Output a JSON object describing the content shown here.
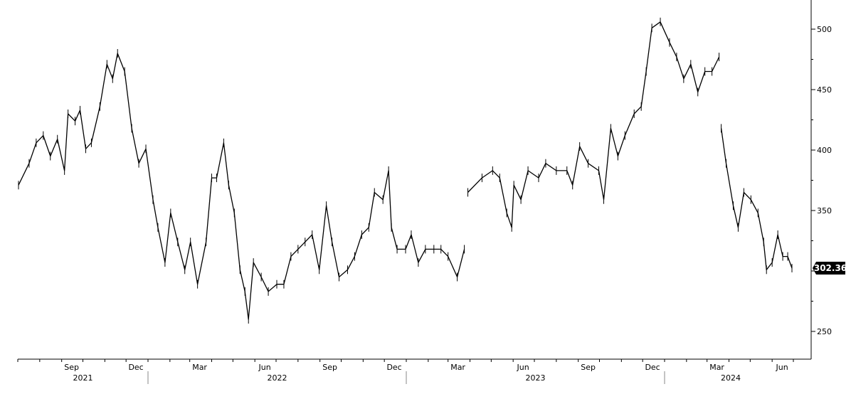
{
  "chart_data": {
    "type": "line",
    "title": "",
    "xlabel": "",
    "ylabel": "",
    "ylim": [
      227,
      524
    ],
    "xlim": [
      "2021-07-01",
      "2024-07-12"
    ],
    "y_axis_position": "right",
    "y_ticks": [
      250,
      300,
      350,
      400,
      450,
      500
    ],
    "y_tick_labels": [
      "250",
      "350",
      "400",
      "450",
      "500"
    ],
    "x_month_labels": [
      {
        "date": "2021-09-15",
        "label": "Sep"
      },
      {
        "date": "2021-12-15",
        "label": "Dec"
      },
      {
        "date": "2022-03-15",
        "label": "Mar"
      },
      {
        "date": "2022-06-15",
        "label": "Jun"
      },
      {
        "date": "2022-09-15",
        "label": "Sep"
      },
      {
        "date": "2022-12-15",
        "label": "Dec"
      },
      {
        "date": "2023-03-15",
        "label": "Mar"
      },
      {
        "date": "2023-06-15",
        "label": "Jun"
      },
      {
        "date": "2023-09-15",
        "label": "Sep"
      },
      {
        "date": "2023-12-15",
        "label": "Dec"
      },
      {
        "date": "2024-03-15",
        "label": "Mar"
      },
      {
        "date": "2024-06-15",
        "label": "Jun"
      }
    ],
    "x_year_labels": [
      {
        "label": "2021",
        "from": "2021-07-01",
        "to": "2022-01-01"
      },
      {
        "label": "2022",
        "from": "2022-01-01",
        "to": "2023-01-01"
      },
      {
        "label": "2023",
        "from": "2023-01-01",
        "to": "2024-01-01"
      },
      {
        "label": "2024",
        "from": "2024-01-01",
        "to": "2024-07-12"
      }
    ],
    "grid": false,
    "line_color": "#000000",
    "last_price": {
      "value": 302.36,
      "label": "302.36",
      "tag_color": "#000000"
    },
    "series": [
      {
        "segments": [
          [
            [
              "2021-07-02",
              371
            ],
            [
              "2021-07-17",
              389
            ],
            [
              "2021-07-27",
              406
            ],
            [
              "2021-08-06",
              412
            ],
            [
              "2021-08-16",
              395
            ],
            [
              "2021-08-26",
              409
            ],
            [
              "2021-09-05",
              383
            ],
            [
              "2021-09-10",
              430
            ],
            [
              "2021-09-20",
              424
            ],
            [
              "2021-09-27",
              433
            ],
            [
              "2021-10-05",
              401
            ],
            [
              "2021-10-13",
              406
            ],
            [
              "2021-10-25",
              436
            ],
            [
              "2021-11-04",
              471
            ],
            [
              "2021-11-12",
              459
            ],
            [
              "2021-11-19",
              480
            ],
            [
              "2021-11-29",
              465
            ],
            [
              "2021-12-09",
              418
            ],
            [
              "2021-12-19",
              389
            ],
            [
              "2021-12-29",
              401
            ],
            [
              "2022-01-08",
              359
            ],
            [
              "2022-01-15",
              336
            ],
            [
              "2022-01-25",
              307
            ],
            [
              "2022-02-02",
              348
            ],
            [
              "2022-02-12",
              324
            ],
            [
              "2022-02-22",
              301
            ],
            [
              "2022-03-02",
              324
            ],
            [
              "2022-03-12",
              289
            ],
            [
              "2022-03-24",
              324
            ],
            [
              "2022-04-01",
              377
            ],
            [
              "2022-04-08",
              377
            ],
            [
              "2022-04-18",
              406
            ],
            [
              "2022-04-25",
              371
            ],
            [
              "2022-05-03",
              348
            ],
            [
              "2022-05-11",
              301
            ],
            [
              "2022-05-18",
              283
            ],
            [
              "2022-05-23",
              260
            ],
            [
              "2022-05-30",
              307
            ],
            [
              "2022-06-10",
              295
            ],
            [
              "2022-06-20",
              283
            ],
            [
              "2022-07-02",
              289
            ],
            [
              "2022-07-12",
              289
            ],
            [
              "2022-07-22",
              312
            ],
            [
              "2022-08-01",
              318
            ],
            [
              "2022-08-11",
              324
            ],
            [
              "2022-08-21",
              330
            ],
            [
              "2022-08-31",
              301
            ],
            [
              "2022-09-10",
              354
            ],
            [
              "2022-09-18",
              324
            ],
            [
              "2022-09-28",
              295
            ],
            [
              "2022-10-10",
              301
            ],
            [
              "2022-10-20",
              312
            ],
            [
              "2022-10-30",
              330
            ],
            [
              "2022-11-09",
              336
            ],
            [
              "2022-11-17",
              365
            ],
            [
              "2022-11-29",
              359
            ],
            [
              "2022-12-07",
              383
            ],
            [
              "2022-12-11",
              336
            ],
            [
              "2022-12-19",
              318
            ],
            [
              "2022-12-31",
              318
            ],
            [
              "2023-01-08",
              330
            ],
            [
              "2023-01-18",
              307
            ],
            [
              "2023-01-28",
              318
            ],
            [
              "2023-02-09",
              318
            ],
            [
              "2023-02-19",
              318
            ],
            [
              "2023-03-01",
              312
            ],
            [
              "2023-03-14",
              295
            ],
            [
              "2023-03-24",
              318
            ]
          ],
          [
            [
              "2023-03-29",
              365
            ],
            [
              "2023-04-18",
              377
            ],
            [
              "2023-05-03",
              383
            ],
            [
              "2023-05-13",
              377
            ],
            [
              "2023-05-23",
              348
            ],
            [
              "2023-05-30",
              336
            ],
            [
              "2023-06-02",
              371
            ],
            [
              "2023-06-12",
              359
            ],
            [
              "2023-06-22",
              383
            ],
            [
              "2023-07-07",
              377
            ],
            [
              "2023-07-17",
              389
            ],
            [
              "2023-08-01",
              383
            ],
            [
              "2023-08-16",
              383
            ],
            [
              "2023-08-24",
              371
            ],
            [
              "2023-09-03",
              403
            ],
            [
              "2023-09-15",
              389
            ],
            [
              "2023-09-30",
              383
            ],
            [
              "2023-10-07",
              359
            ],
            [
              "2023-10-17",
              418
            ],
            [
              "2023-10-27",
              395
            ],
            [
              "2023-11-06",
              412
            ],
            [
              "2023-11-19",
              430
            ],
            [
              "2023-11-29",
              436
            ],
            [
              "2023-12-06",
              465
            ],
            [
              "2023-12-14",
              501
            ],
            [
              "2023-12-26",
              506
            ],
            [
              "2024-01-08",
              489
            ],
            [
              "2024-01-18",
              477
            ],
            [
              "2024-01-28",
              459
            ],
            [
              "2024-02-07",
              471
            ],
            [
              "2024-02-17",
              448
            ],
            [
              "2024-02-27",
              465
            ],
            [
              "2024-03-08",
              465
            ],
            [
              "2024-03-18",
              477
            ]
          ],
          [
            [
              "2024-03-21",
              418
            ],
            [
              "2024-03-28",
              389
            ],
            [
              "2024-04-07",
              354
            ],
            [
              "2024-04-14",
              336
            ],
            [
              "2024-04-22",
              365
            ],
            [
              "2024-05-02",
              359
            ],
            [
              "2024-05-12",
              348
            ],
            [
              "2024-05-20",
              324
            ],
            [
              "2024-05-24",
              301
            ],
            [
              "2024-06-01",
              307
            ],
            [
              "2024-06-09",
              330
            ],
            [
              "2024-06-16",
              312
            ],
            [
              "2024-06-23",
              312
            ],
            [
              "2024-06-29",
              302.36
            ]
          ]
        ]
      }
    ]
  }
}
